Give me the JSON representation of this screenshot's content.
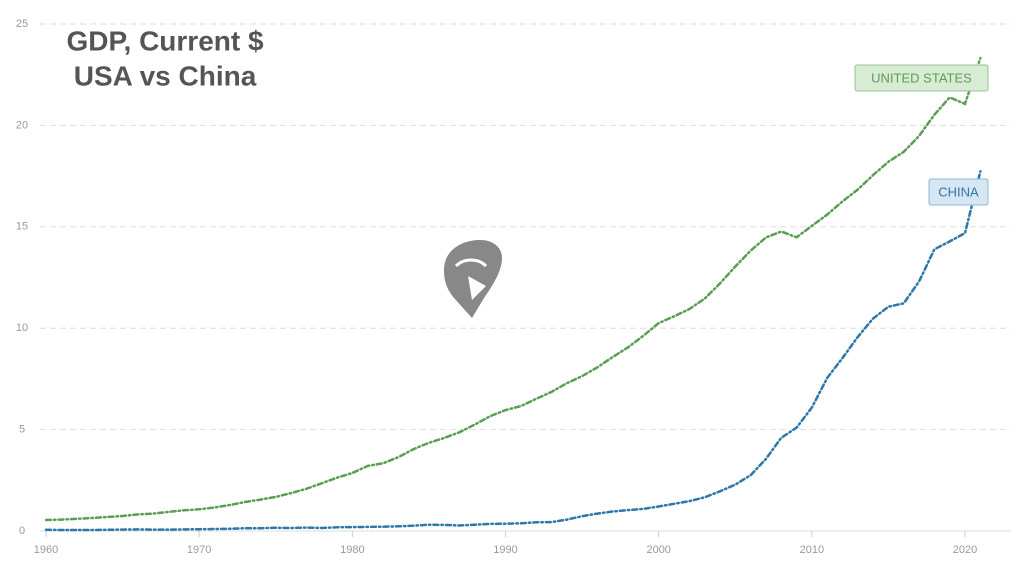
{
  "chart_data": {
    "type": "line",
    "title": "GDP, Current $",
    "subtitle": "USA vs China",
    "x": [
      1960,
      1961,
      1962,
      1963,
      1964,
      1965,
      1966,
      1967,
      1968,
      1969,
      1970,
      1971,
      1972,
      1973,
      1974,
      1975,
      1976,
      1977,
      1978,
      1979,
      1980,
      1981,
      1982,
      1983,
      1984,
      1985,
      1986,
      1987,
      1988,
      1989,
      1990,
      1991,
      1992,
      1993,
      1994,
      1995,
      1996,
      1997,
      1998,
      1999,
      2000,
      2001,
      2002,
      2003,
      2004,
      2005,
      2006,
      2007,
      2008,
      2009,
      2010,
      2011,
      2012,
      2013,
      2014,
      2015,
      2016,
      2017,
      2018,
      2019,
      2020,
      2021
    ],
    "series": [
      {
        "name": "UNITED STATES",
        "color": "#5a9e53",
        "values": [
          0.54,
          0.56,
          0.6,
          0.64,
          0.69,
          0.74,
          0.82,
          0.86,
          0.94,
          1.02,
          1.07,
          1.16,
          1.28,
          1.43,
          1.55,
          1.68,
          1.87,
          2.08,
          2.35,
          2.63,
          2.86,
          3.21,
          3.34,
          3.64,
          4.04,
          4.35,
          4.59,
          4.87,
          5.25,
          5.66,
          5.96,
          6.16,
          6.52,
          6.86,
          7.29,
          7.64,
          8.07,
          8.58,
          9.06,
          9.63,
          10.25,
          10.58,
          10.94,
          11.46,
          12.21,
          13.04,
          13.82,
          14.47,
          14.77,
          14.48,
          15.05,
          15.6,
          16.25,
          16.84,
          17.55,
          18.21,
          18.7,
          19.48,
          20.53,
          21.38,
          21.06,
          23.32
        ]
      },
      {
        "name": "CHINA",
        "color": "#2e77aa",
        "values": [
          0.06,
          0.05,
          0.05,
          0.05,
          0.06,
          0.07,
          0.08,
          0.07,
          0.07,
          0.08,
          0.09,
          0.1,
          0.11,
          0.14,
          0.14,
          0.16,
          0.15,
          0.17,
          0.15,
          0.18,
          0.19,
          0.2,
          0.21,
          0.23,
          0.26,
          0.31,
          0.3,
          0.27,
          0.31,
          0.35,
          0.36,
          0.38,
          0.43,
          0.44,
          0.56,
          0.73,
          0.86,
          0.96,
          1.03,
          1.09,
          1.21,
          1.34,
          1.47,
          1.66,
          1.96,
          2.29,
          2.75,
          3.55,
          4.59,
          5.1,
          6.09,
          7.55,
          8.53,
          9.57,
          10.48,
          11.06,
          11.23,
          12.31,
          13.89,
          14.28,
          14.69,
          17.73
        ]
      }
    ],
    "xlim": [
      1960,
      2023
    ],
    "xticks": [
      1960,
      1970,
      1980,
      1990,
      2000,
      2010,
      2020
    ],
    "ylim": [
      0,
      25
    ],
    "yticks": [
      0,
      5,
      10,
      15,
      20,
      25
    ],
    "grid": true
  }
}
